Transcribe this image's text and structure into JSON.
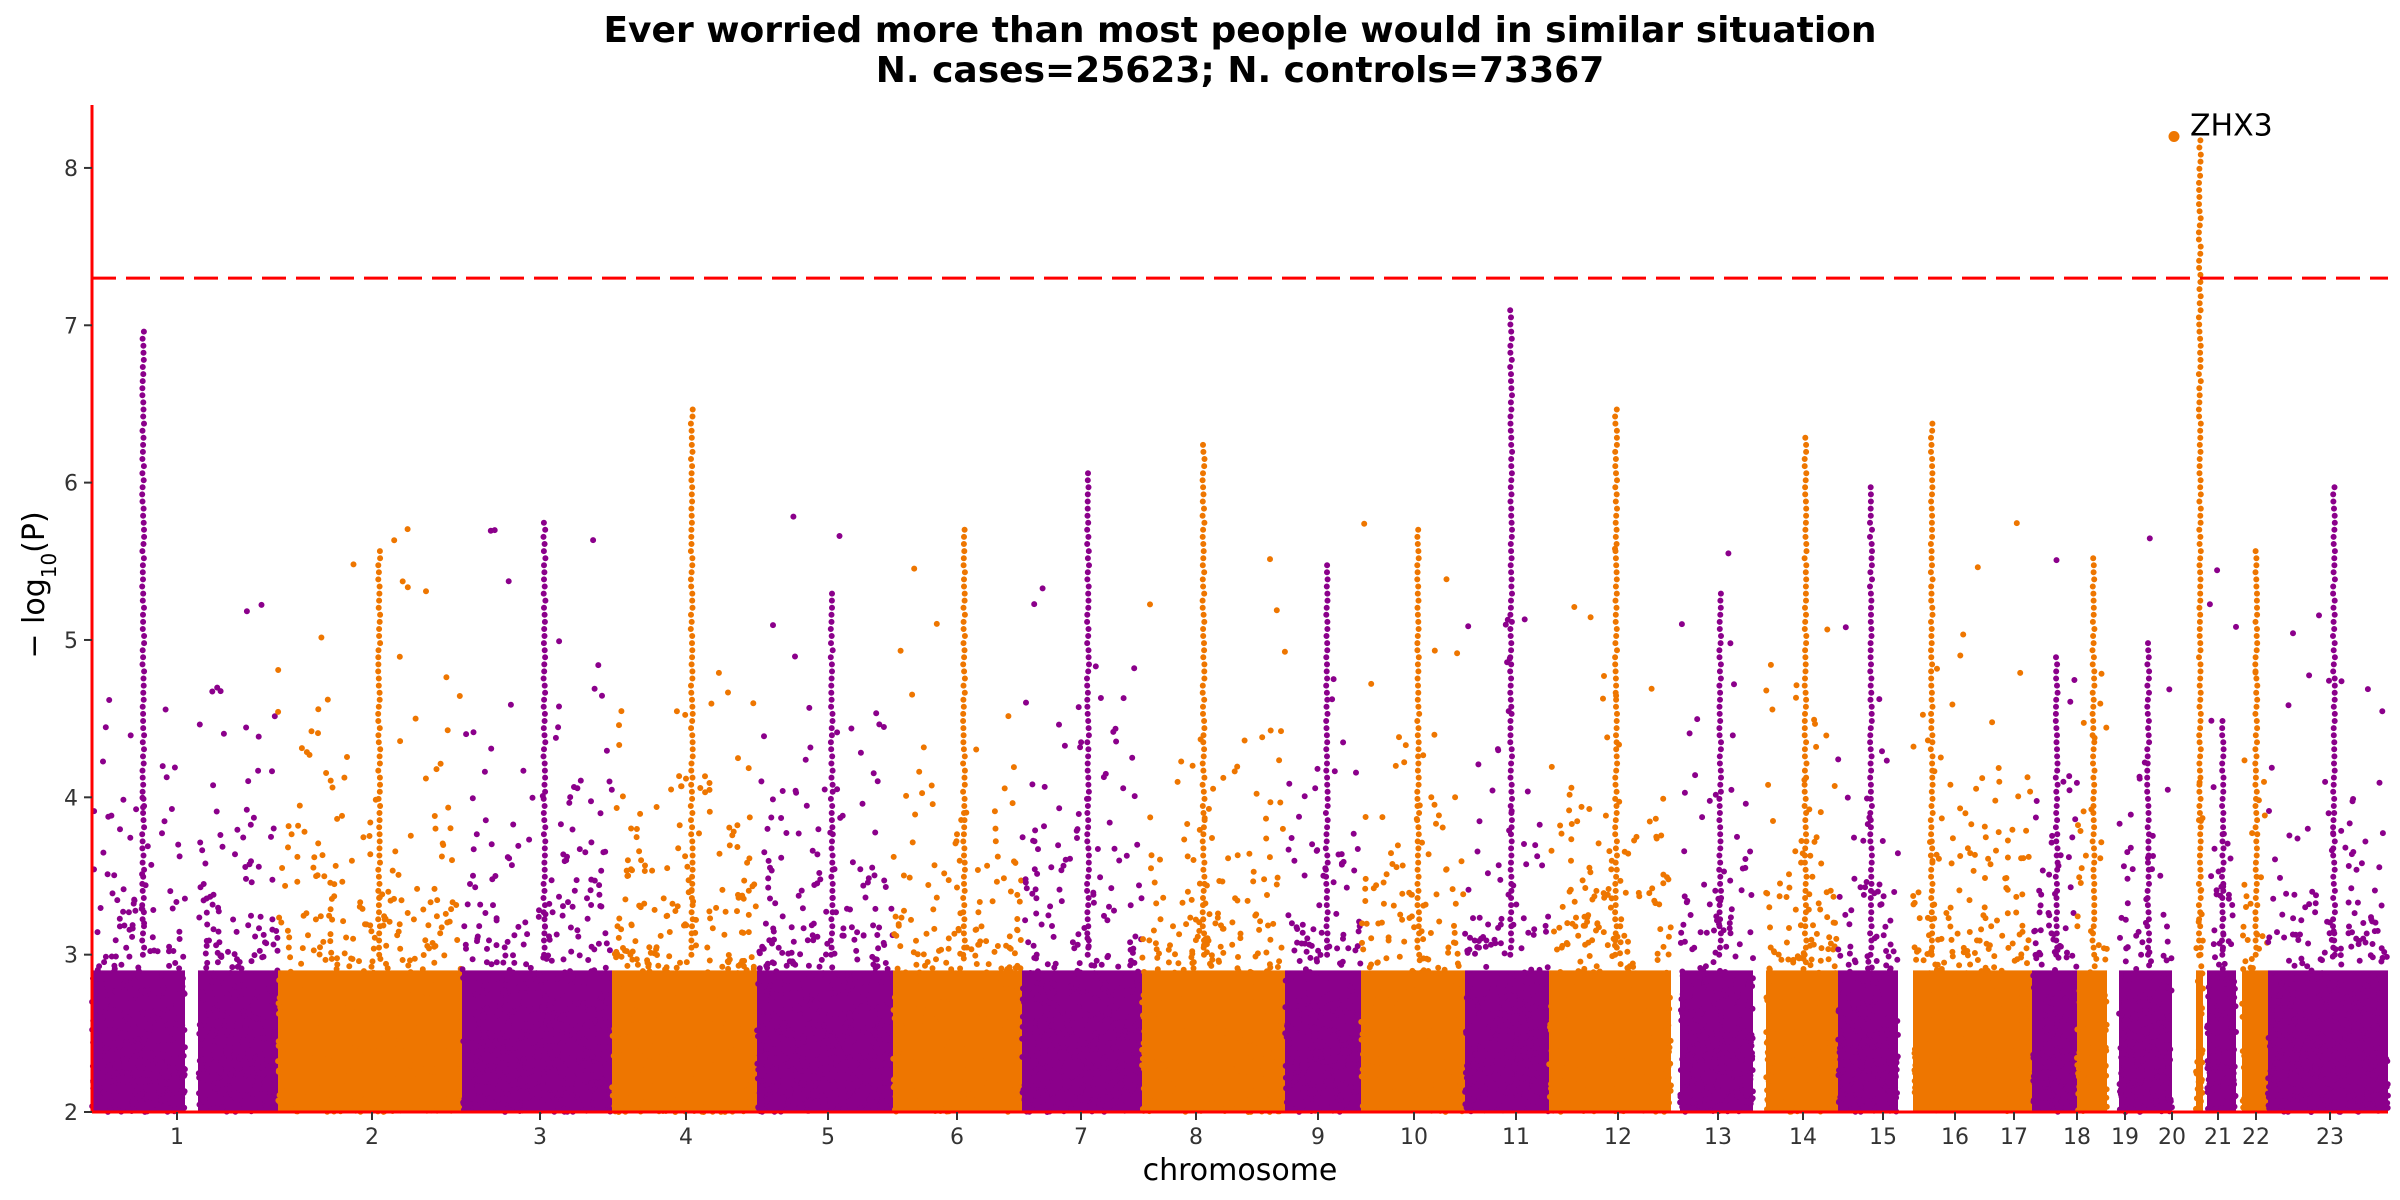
{
  "chart_data": {
    "type": "scatter",
    "subtype": "manhattan",
    "title": "Ever worried more than most people would in similar situation",
    "subtitle": "N. cases=25623; N. controls=73367",
    "xlabel": "chromosome",
    "ylabel": "− log10(P)",
    "ylabel_main": "− log",
    "ylabel_sub": "10",
    "ylabel_tail": "(P)",
    "ylim": [
      2,
      8.4
    ],
    "yticks": [
      "2",
      "3",
      "4",
      "5",
      "6",
      "7",
      "8"
    ],
    "significance_line": 7.3,
    "colors": {
      "odd": "#8B008B",
      "even": "#EE7600",
      "threshold": "#FF0000",
      "axis": "#FF0000"
    },
    "chromosomes": [
      {
        "label": "1",
        "peak": 7.0
      },
      {
        "label": "2",
        "peak": 5.6
      },
      {
        "label": "3",
        "peak": 5.75
      },
      {
        "label": "4",
        "peak": 6.5
      },
      {
        "label": "5",
        "peak": 5.3
      },
      {
        "label": "6",
        "peak": 5.7
      },
      {
        "label": "7",
        "peak": 6.1
      },
      {
        "label": "8",
        "peak": 6.25
      },
      {
        "label": "9",
        "peak": 5.5
      },
      {
        "label": "10",
        "peak": 5.7
      },
      {
        "label": "11",
        "peak": 7.1
      },
      {
        "label": "12",
        "peak": 6.5
      },
      {
        "label": "13",
        "peak": 5.3
      },
      {
        "label": "14",
        "peak": 6.3
      },
      {
        "label": "15",
        "peak": 6.0
      },
      {
        "label": "16",
        "peak": 6.4
      },
      {
        "label": "17",
        "peak": 4.9
      },
      {
        "label": "18",
        "peak": 5.55
      },
      {
        "label": "19",
        "peak": 5.0
      },
      {
        "label": "20",
        "peak": 8.2
      },
      {
        "label": "21",
        "peak": 4.5
      },
      {
        "label": "22",
        "peak": 5.6
      },
      {
        "label": "23",
        "peak": 6.0
      }
    ],
    "annotations": [
      {
        "text": "ZHX3",
        "chromosome": "20",
        "y": 8.2
      }
    ]
  }
}
